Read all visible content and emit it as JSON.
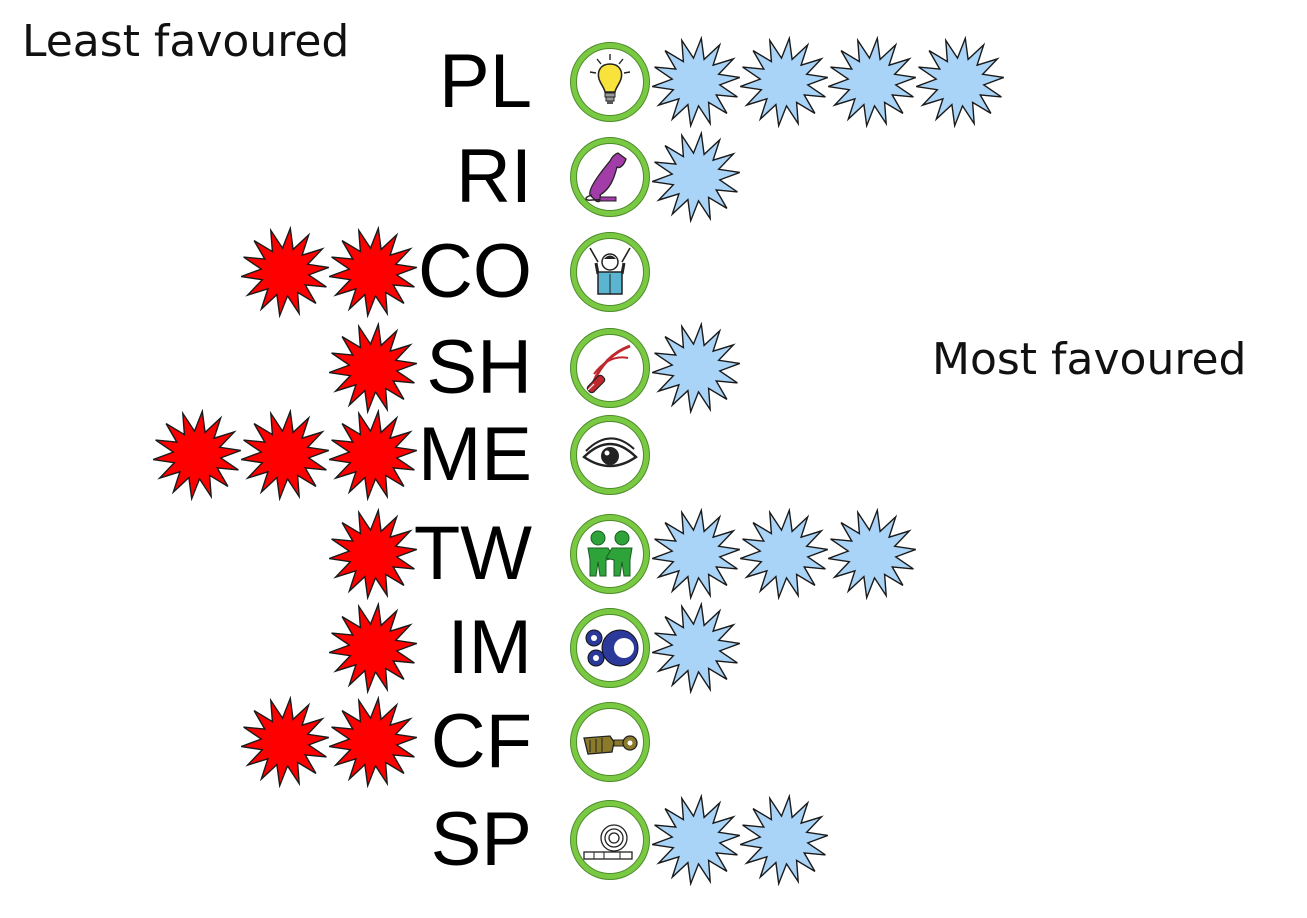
{
  "labels": {
    "least": "Least favoured",
    "most": "Most favoured"
  },
  "colors": {
    "negative_star": "#ff0000",
    "positive_star": "#a9d4f7",
    "icon_ring": "#7ac943"
  },
  "roles": [
    {
      "code": "PL",
      "icon": "lightbulb-icon",
      "least": 0,
      "most": 4
    },
    {
      "code": "RI",
      "icon": "telephone-icon",
      "least": 0,
      "most": 1
    },
    {
      "code": "CO",
      "icon": "conductor-icon",
      "least": 2,
      "most": 0
    },
    {
      "code": "SH",
      "icon": "whip-icon",
      "least": 1,
      "most": 1
    },
    {
      "code": "ME",
      "icon": "eye-icon",
      "least": 3,
      "most": 0
    },
    {
      "code": "TW",
      "icon": "two-people-icon",
      "least": 1,
      "most": 3
    },
    {
      "code": "IM",
      "icon": "gears-icon",
      "least": 1,
      "most": 1
    },
    {
      "code": "CF",
      "icon": "hand-key-icon",
      "least": 2,
      "most": 0
    },
    {
      "code": "SP",
      "icon": "spring-icon",
      "least": 0,
      "most": 2
    }
  ]
}
